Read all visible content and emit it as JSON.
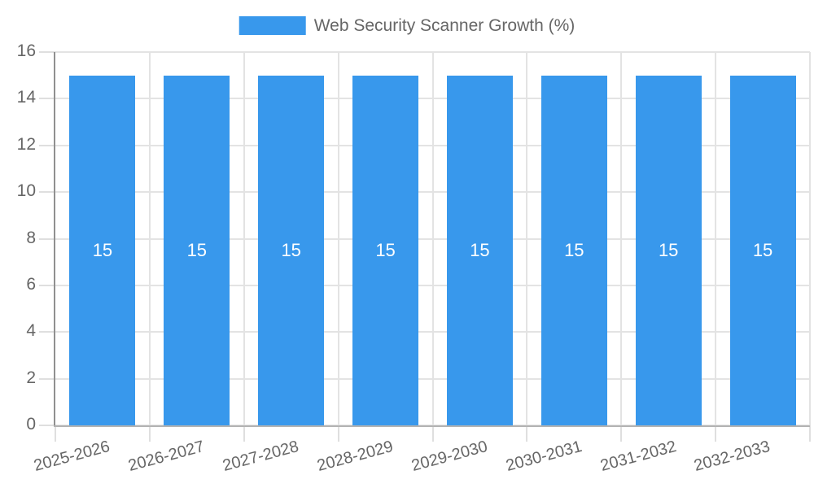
{
  "legend": {
    "label": "Web Security Scanner Growth (%)"
  },
  "chart_data": {
    "type": "bar",
    "title": "",
    "legend_position": "top",
    "categories": [
      "2025-2026",
      "2026-2027",
      "2027-2028",
      "2028-2029",
      "2029-2030",
      "2030-2031",
      "2031-2032",
      "2032-2033"
    ],
    "series": [
      {
        "name": "Web Security Scanner Growth (%)",
        "values": [
          15,
          15,
          15,
          15,
          15,
          15,
          15,
          15
        ]
      }
    ],
    "bar_value_labels": [
      "15",
      "15",
      "15",
      "15",
      "15",
      "15",
      "15",
      "15"
    ],
    "xlabel": "",
    "ylabel": "",
    "ylim": [
      0,
      16
    ],
    "yticks": [
      0,
      2,
      4,
      6,
      8,
      10,
      12,
      14,
      16
    ],
    "grid": true,
    "x_label_rotation_deg": -15
  },
  "colors": {
    "bar": "#3898EC",
    "bar_value_label": "#FFFFFF",
    "gridline": "#E3E3E3",
    "tick": "#DFDFDF",
    "y_axis_line": "#909090",
    "x_axis_line": "#B3B3B3",
    "tick_label": "#666666",
    "legend_text": "#666666",
    "background": "#FFFFFF"
  }
}
